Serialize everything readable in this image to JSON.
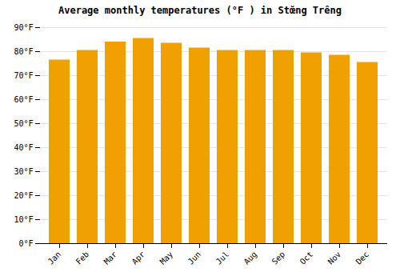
{
  "chart_data": {
    "type": "bar",
    "title": "Average monthly temperatures (°F ) in Stœ̆ng Trêng",
    "categories": [
      "Jan",
      "Feb",
      "Mar",
      "Apr",
      "May",
      "Jun",
      "Jul",
      "Aug",
      "Sep",
      "Oct",
      "Nov",
      "Dec"
    ],
    "values": [
      76.5,
      80.5,
      84,
      85.5,
      83.5,
      81.5,
      80.5,
      80.5,
      80.5,
      79.5,
      78.5,
      75.5
    ],
    "color": "#F0A000",
    "ylim": [
      0,
      90
    ],
    "yticks": [
      {
        "value": 0,
        "label": "0°F"
      },
      {
        "value": 10,
        "label": "10°F"
      },
      {
        "value": 20,
        "label": "20°F"
      },
      {
        "value": 30,
        "label": "30°F"
      },
      {
        "value": 40,
        "label": "40°F"
      },
      {
        "value": 50,
        "label": "50°F"
      },
      {
        "value": 60,
        "label": "60°F"
      },
      {
        "value": 70,
        "label": "70°F"
      },
      {
        "value": 80,
        "label": "80°F"
      },
      {
        "value": 90,
        "label": "90°F"
      }
    ],
    "grid": true
  }
}
